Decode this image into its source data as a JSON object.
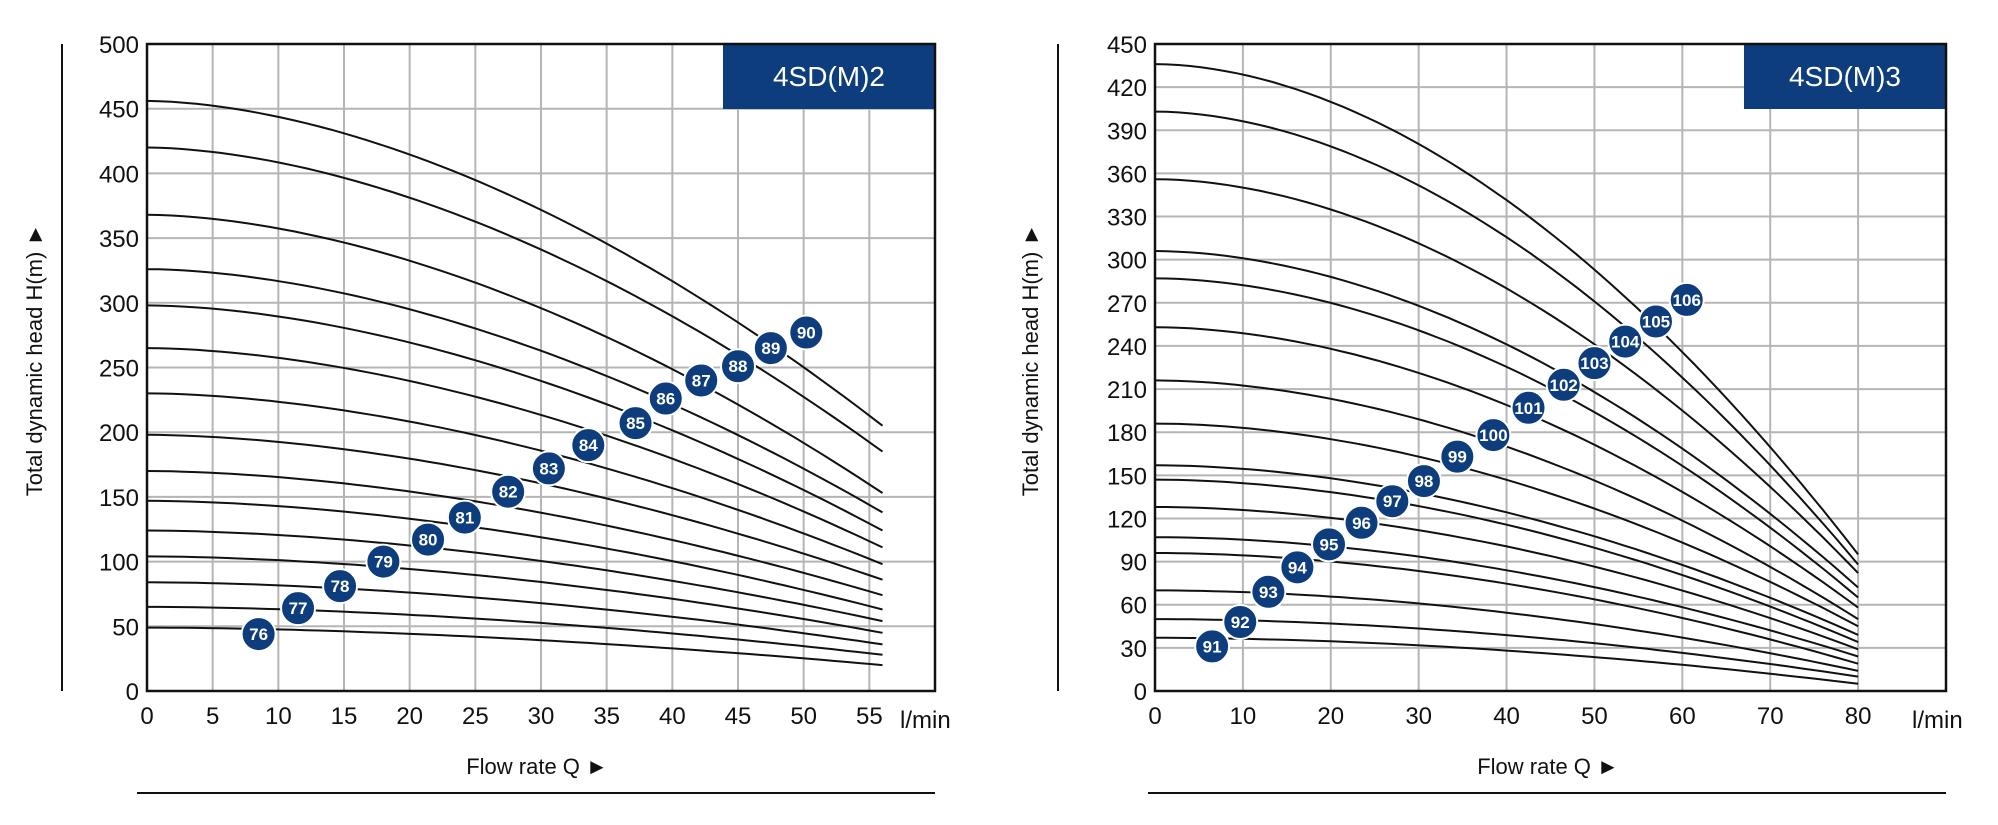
{
  "colors": {
    "badge": "#0d3d7c",
    "curve": "#111111",
    "grid": "#b5b5b5",
    "frame": "#111111"
  },
  "chart_data": [
    {
      "type": "line",
      "title": "4SD(M)2",
      "xlabel": "Flow rate Q ►",
      "ylabel": "Total dynamic head H(m) ►",
      "x_unit": "l/min",
      "xlim": [
        0,
        60
      ],
      "ylim": [
        0,
        500
      ],
      "x_ticks": [
        "0",
        "5",
        "10",
        "15",
        "20",
        "25",
        "30",
        "35",
        "40",
        "45",
        "50",
        "55"
      ],
      "y_ticks": [
        "0",
        "50",
        "100",
        "150",
        "200",
        "250",
        "300",
        "350",
        "400",
        "450",
        "500"
      ],
      "curve_x_end": 56,
      "series": [
        {
          "name": "76",
          "h0": 49,
          "h_end": 20,
          "badge": [
            8.5,
            44
          ]
        },
        {
          "name": "77",
          "h0": 65,
          "h_end": 28,
          "badge": [
            11.5,
            64
          ]
        },
        {
          "name": "78",
          "h0": 84,
          "h_end": 36,
          "badge": [
            14.7,
            81
          ]
        },
        {
          "name": "79",
          "h0": 104,
          "h_end": 45,
          "badge": [
            18,
            100
          ]
        },
        {
          "name": "80",
          "h0": 124,
          "h_end": 54,
          "badge": [
            21.4,
            117
          ]
        },
        {
          "name": "81",
          "h0": 147,
          "h_end": 63,
          "badge": [
            24.2,
            134
          ]
        },
        {
          "name": "82",
          "h0": 170,
          "h_end": 74,
          "badge": [
            27.5,
            154
          ]
        },
        {
          "name": "83",
          "h0": 198,
          "h_end": 86,
          "badge": [
            30.6,
            172
          ]
        },
        {
          "name": "84",
          "h0": 230,
          "h_end": 98,
          "badge": [
            33.6,
            190
          ]
        },
        {
          "name": "85",
          "h0": 265,
          "h_end": 111,
          "badge": [
            37.2,
            207
          ]
        },
        {
          "name": "86",
          "h0": 298,
          "h_end": 124,
          "badge": [
            39.5,
            226
          ]
        },
        {
          "name": "87",
          "h0": 326,
          "h_end": 138,
          "badge": [
            42.2,
            240
          ]
        },
        {
          "name": "88",
          "h0": 368,
          "h_end": 153,
          "badge": [
            45,
            251
          ]
        },
        {
          "name": "89",
          "h0": 420,
          "h_end": 185,
          "badge": [
            47.5,
            265
          ]
        },
        {
          "name": "90",
          "h0": 456,
          "h_end": 205,
          "badge": [
            50.2,
            277
          ]
        }
      ]
    },
    {
      "type": "line",
      "title": "4SD(M)3",
      "xlabel": "Flow rate Q ►",
      "ylabel": "Total dynamic head H(m) ►",
      "x_unit": "l/min",
      "xlim": [
        0,
        90
      ],
      "ylim": [
        0,
        450
      ],
      "x_ticks": [
        "0",
        "10",
        "20",
        "30",
        "40",
        "50",
        "60",
        "70",
        "80"
      ],
      "y_ticks": [
        "0",
        "30",
        "60",
        "90",
        "120",
        "150",
        "180",
        "210",
        "240",
        "270",
        "300",
        "330",
        "360",
        "390",
        "420",
        "450"
      ],
      "curve_x_end": 80,
      "series": [
        {
          "name": "91",
          "h0": 37,
          "h_end": 5,
          "badge": [
            6.5,
            31
          ]
        },
        {
          "name": "92",
          "h0": 50,
          "h_end": 10,
          "badge": [
            9.7,
            48
          ]
        },
        {
          "name": "93",
          "h0": 70,
          "h_end": 14,
          "badge": [
            12.9,
            69
          ]
        },
        {
          "name": "94",
          "h0": 96,
          "h_end": 19,
          "badge": [
            16.2,
            86
          ]
        },
        {
          "name": "95",
          "h0": 107,
          "h_end": 24,
          "badge": [
            19.8,
            102
          ]
        },
        {
          "name": "96",
          "h0": 128,
          "h_end": 29,
          "badge": [
            23.5,
            117
          ]
        },
        {
          "name": "97",
          "h0": 147,
          "h_end": 34,
          "badge": [
            27,
            132
          ]
        },
        {
          "name": "98",
          "h0": 157,
          "h_end": 39,
          "badge": [
            30.6,
            146
          ]
        },
        {
          "name": "99",
          "h0": 186,
          "h_end": 45,
          "badge": [
            34.4,
            163
          ]
        },
        {
          "name": "100",
          "h0": 216,
          "h_end": 50,
          "badge": [
            38.5,
            178
          ]
        },
        {
          "name": "101",
          "h0": 253,
          "h_end": 58,
          "badge": [
            42.5,
            197
          ]
        },
        {
          "name": "102",
          "h0": 287,
          "h_end": 65,
          "badge": [
            46.5,
            213
          ]
        },
        {
          "name": "103",
          "h0": 306,
          "h_end": 72,
          "badge": [
            50,
            228
          ]
        },
        {
          "name": "104",
          "h0": 356,
          "h_end": 82,
          "badge": [
            53.5,
            243
          ]
        },
        {
          "name": "105",
          "h0": 403,
          "h_end": 88,
          "badge": [
            57,
            257
          ]
        },
        {
          "name": "106",
          "h0": 436,
          "h_end": 95,
          "badge": [
            60.5,
            272
          ]
        }
      ]
    }
  ]
}
